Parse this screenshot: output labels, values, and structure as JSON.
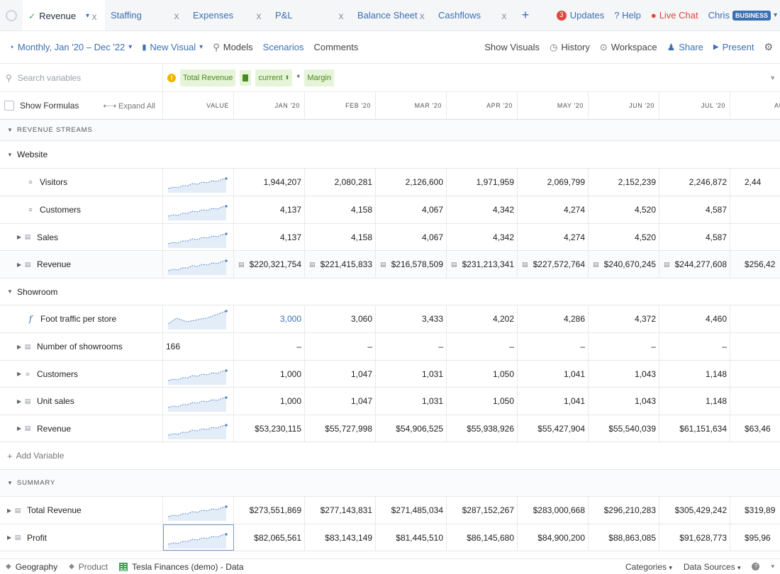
{
  "tabs": [
    {
      "label": "Revenue",
      "active": true
    },
    {
      "label": "Staffing"
    },
    {
      "label": "Expenses"
    },
    {
      "label": "P&L"
    },
    {
      "label": "Balance Sheet"
    },
    {
      "label": "Cashflows"
    }
  ],
  "tab_close_glyph": "x",
  "tab_add_glyph": "+",
  "header_right": {
    "updates_count": "3",
    "updates_label": "Updates",
    "help_label": "Help",
    "livechat_label": "Live Chat",
    "user_name": "Chris",
    "plan_badge": "BUSINESS"
  },
  "toolbar": {
    "timeframe": "Monthly, Jan '20 – Dec '22",
    "new_visual": "New Visual",
    "models": "Models",
    "scenarios": "Scenarios",
    "comments": "Comments",
    "show_visuals": "Show Visuals",
    "history": "History",
    "workspace": "Workspace",
    "share": "Share",
    "present": "Present"
  },
  "formula_bar": {
    "search_placeholder": "Search variables",
    "chip_total_revenue": "Total Revenue",
    "chip_current": "current",
    "operator": "*",
    "chip_margin": "Margin"
  },
  "columns": {
    "show_formulas": "Show Formulas",
    "expand_all": "Expand All",
    "value": "VALUE",
    "months": [
      "JAN '20",
      "FEB '20",
      "MAR '20",
      "APR '20",
      "MAY '20",
      "JUN '20",
      "JUL '20",
      "AU"
    ]
  },
  "sections": {
    "revenue_streams": "REVENUE STREAMS",
    "website": "Website",
    "showroom": "Showroom",
    "add_variable": "Add Variable",
    "summary": "SUMMARY"
  },
  "rows": {
    "visitors": {
      "name": "Visitors",
      "values": [
        "1,944,207",
        "2,080,281",
        "2,126,600",
        "1,971,959",
        "2,069,799",
        "2,152,239",
        "2,246,872",
        "2,44"
      ]
    },
    "web_customers": {
      "name": "Customers",
      "values": [
        "4,137",
        "4,158",
        "4,067",
        "4,342",
        "4,274",
        "4,520",
        "4,587",
        ""
      ]
    },
    "web_sales": {
      "name": "Sales",
      "values": [
        "4,137",
        "4,158",
        "4,067",
        "4,342",
        "4,274",
        "4,520",
        "4,587",
        ""
      ]
    },
    "web_revenue": {
      "name": "Revenue",
      "values": [
        "$220,321,754",
        "$221,415,833",
        "$216,578,509",
        "$231,213,341",
        "$227,572,764",
        "$240,670,245",
        "$244,277,608",
        "$256,42"
      ]
    },
    "foot_traffic": {
      "name": "Foot traffic per store",
      "values": [
        "3,000",
        "3,060",
        "3,433",
        "4,202",
        "4,286",
        "4,372",
        "4,460",
        ""
      ]
    },
    "num_showrooms": {
      "name": "Number of showrooms",
      "value": "166",
      "values": [
        "–",
        "–",
        "–",
        "–",
        "–",
        "–",
        "–",
        ""
      ]
    },
    "sr_customers": {
      "name": "Customers",
      "values": [
        "1,000",
        "1,047",
        "1,031",
        "1,050",
        "1,041",
        "1,043",
        "1,148",
        ""
      ]
    },
    "unit_sales": {
      "name": "Unit sales",
      "values": [
        "1,000",
        "1,047",
        "1,031",
        "1,050",
        "1,041",
        "1,043",
        "1,148",
        ""
      ]
    },
    "sr_revenue": {
      "name": "Revenue",
      "values": [
        "$53,230,115",
        "$55,727,998",
        "$54,906,525",
        "$55,938,926",
        "$55,427,904",
        "$55,540,039",
        "$61,151,634",
        "$63,46"
      ]
    },
    "total_revenue": {
      "name": "Total Revenue",
      "values": [
        "$273,551,869",
        "$277,143,831",
        "$271,485,034",
        "$287,152,267",
        "$283,000,668",
        "$296,210,283",
        "$305,429,242",
        "$319,89"
      ]
    },
    "profit": {
      "name": "Profit",
      "values": [
        "$82,065,561",
        "$83,143,149",
        "$81,445,510",
        "$86,145,680",
        "$84,900,200",
        "$88,863,085",
        "$91,628,773",
        "$95,96"
      ]
    }
  },
  "bottom_bar": {
    "geography": "Geography",
    "product": "Product",
    "data_source": "Tesla Finances (demo) - Data",
    "categories": "Categories",
    "data_sources": "Data Sources"
  },
  "colors": {
    "accent": "#3b6fb3",
    "live_chat": "#e0453b",
    "formula_chip": "#e6f4d9"
  }
}
